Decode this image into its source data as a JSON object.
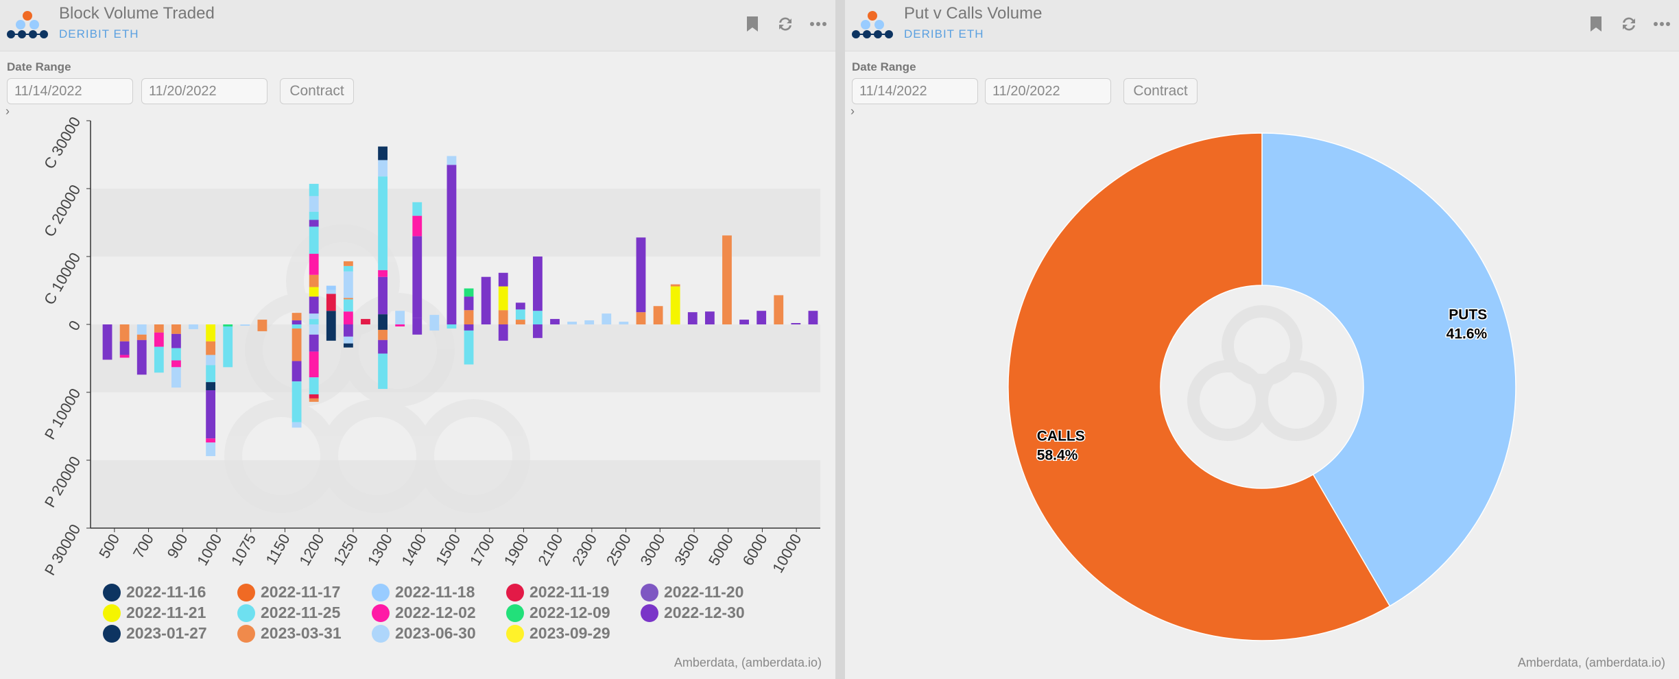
{
  "left": {
    "title": "Block Volume Traded",
    "subtitle": "DERIBIT ETH",
    "date_range_label": "Date Range",
    "start_date": "11/14/2022",
    "end_date": "11/20/2022",
    "contract_label": "Contract",
    "expander": "›",
    "credit": "Amberdata, (amberdata.io)"
  },
  "right": {
    "title": "Put v Calls Volume",
    "subtitle": "DERIBIT ETH",
    "date_range_label": "Date Range",
    "start_date": "11/14/2022",
    "end_date": "11/20/2022",
    "contract_label": "Contract",
    "expander": "›",
    "credit": "Amberdata, (amberdata.io)"
  },
  "chart_data": [
    {
      "type": "bar",
      "stacked": true,
      "categories": [
        "500",
        "700",
        "900",
        "1000",
        "1075",
        "1150",
        "1200",
        "1250",
        "1300",
        "1400",
        "1500",
        "1700",
        "1900",
        "2100",
        "2300",
        "2500",
        "3000",
        "3500",
        "5000",
        "6000",
        "10000"
      ],
      "ylim": [
        -30000,
        30000
      ],
      "yticks": [
        {
          "value": 30000,
          "label": "C 30000"
        },
        {
          "value": 20000,
          "label": "C 20000"
        },
        {
          "value": 10000,
          "label": "C 10000"
        },
        {
          "value": 0,
          "label": "0"
        },
        {
          "value": -10000,
          "label": "P 10000"
        },
        {
          "value": -20000,
          "label": "P 20000"
        },
        {
          "value": -30000,
          "label": "P 30000"
        }
      ],
      "legend": [
        {
          "name": "2022-11-16",
          "color": "#0d3461"
        },
        {
          "name": "2022-11-17",
          "color": "#f06a24"
        },
        {
          "name": "2022-11-18",
          "color": "#99ccff"
        },
        {
          "name": "2022-11-19",
          "color": "#e31a47"
        },
        {
          "name": "2022-11-20",
          "color": "#7e57c2"
        },
        {
          "name": "2022-11-21",
          "color": "#f5f500"
        },
        {
          "name": "2022-11-25",
          "color": "#6ee0f0"
        },
        {
          "name": "2022-12-02",
          "color": "#ff1aa6"
        },
        {
          "name": "2022-12-09",
          "color": "#22e07a"
        },
        {
          "name": "2022-12-30",
          "color": "#7a35c8"
        },
        {
          "name": "2023-01-27",
          "color": "#0d3461"
        },
        {
          "name": "2023-03-31",
          "color": "#f08a4b"
        },
        {
          "name": "2023-06-30",
          "color": "#aed6fb"
        },
        {
          "name": "2023-09-29",
          "color": "#fff22a"
        }
      ],
      "bars": [
        {
          "c": [],
          "p": [
            [
              "2022-12-30",
              5200
            ]
          ]
        },
        {
          "c": [],
          "p": [
            [
              "2023-03-31",
              2500
            ],
            [
              "2022-12-30",
              2000
            ],
            [
              "2022-12-02",
              400
            ]
          ]
        },
        {
          "c": [],
          "p": [
            [
              "2023-06-30",
              1500
            ],
            [
              "2023-03-31",
              800
            ],
            [
              "2022-12-30",
              5100
            ]
          ]
        },
        {
          "c": [],
          "p": [
            [
              "2023-03-31",
              1200
            ],
            [
              "2022-12-02",
              2100
            ],
            [
              "2022-11-25",
              3800
            ]
          ]
        },
        {
          "c": [],
          "p": [
            [
              "2023-03-31",
              1400
            ],
            [
              "2022-12-30",
              2100
            ],
            [
              "2022-11-25",
              1800
            ],
            [
              "2022-12-02",
              1000
            ],
            [
              "2023-06-30",
              3000
            ]
          ]
        },
        {
          "c": [],
          "p": [
            [
              "2023-06-30",
              700
            ]
          ]
        },
        {
          "c": [],
          "p": [
            [
              "2022-11-21",
              2500
            ],
            [
              "2023-03-31",
              2000
            ],
            [
              "2023-06-30",
              1500
            ],
            [
              "2022-11-25",
              2500
            ],
            [
              "2022-11-16",
              1200
            ],
            [
              "2022-12-30",
              7100
            ],
            [
              "2022-12-02",
              600
            ],
            [
              "2023-06-30",
              2000
            ]
          ]
        },
        {
          "c": [],
          "p": [
            [
              "2022-12-09",
              300
            ],
            [
              "2022-11-25",
              6000
            ]
          ]
        },
        {
          "c": [],
          "p": [
            [
              "2023-06-30",
              200
            ]
          ]
        },
        {
          "c": [
            [
              "2023-03-31",
              700
            ]
          ],
          "p": [
            [
              "2023-03-31",
              1000
            ]
          ]
        },
        {
          "c": [],
          "p": []
        },
        {
          "c": [
            [
              "2022-12-30",
              600
            ],
            [
              "2023-03-31",
              1100
            ]
          ],
          "p": [
            [
              "2022-11-25",
              600
            ],
            [
              "2023-03-31",
              4800
            ],
            [
              "2022-12-30",
              3000
            ],
            [
              "2022-11-25",
              6000
            ],
            [
              "2023-06-30",
              800
            ]
          ]
        },
        {
          "c": [
            [
              "2022-11-25",
              800
            ],
            [
              "2023-06-30",
              800
            ],
            [
              "2022-12-30",
              2500
            ],
            [
              "2022-11-21",
              1400
            ],
            [
              "2023-03-31",
              1800
            ],
            [
              "2022-12-02",
              3100
            ],
            [
              "2022-11-25",
              4000
            ],
            [
              "2022-12-30",
              1000
            ],
            [
              "2022-11-25",
              1200
            ],
            [
              "2023-06-30",
              2300
            ],
            [
              "2022-11-25",
              1800
            ]
          ],
          "p": [
            [
              "2023-06-30",
              1500
            ],
            [
              "2022-12-30",
              2500
            ],
            [
              "2022-12-02",
              3800
            ],
            [
              "2022-11-25",
              2500
            ],
            [
              "2022-11-19",
              600
            ],
            [
              "2023-03-31",
              500
            ]
          ]
        },
        {
          "c": [
            [
              "2022-11-16",
              2000
            ],
            [
              "2022-11-19",
              2500
            ],
            [
              "2023-06-30",
              600
            ],
            [
              "2022-11-18",
              600
            ]
          ],
          "p": [
            [
              "2022-11-16",
              2400
            ]
          ]
        },
        {
          "c": [
            [
              "2022-12-02",
              1900
            ],
            [
              "2022-11-25",
              1800
            ],
            [
              "2023-03-31",
              200
            ],
            [
              "2023-06-30",
              3900
            ],
            [
              "2022-11-25",
              800
            ],
            [
              "2023-03-31",
              700
            ]
          ],
          "p": [
            [
              "2022-12-30",
              1800
            ],
            [
              "2023-06-30",
              1000
            ],
            [
              "2022-11-16",
              600
            ]
          ]
        },
        {
          "c": [
            [
              "2022-11-19",
              800
            ]
          ],
          "p": []
        },
        {
          "c": [
            [
              "2022-11-16",
              1500
            ],
            [
              "2022-12-30",
              5500
            ],
            [
              "2022-12-02",
              1000
            ],
            [
              "2022-11-25",
              13800
            ],
            [
              "2023-06-30",
              2400
            ],
            [
              "2022-11-16",
              2000
            ]
          ],
          "p": [
            [
              "2022-11-16",
              800
            ],
            [
              "2023-03-31",
              1500
            ],
            [
              "2022-12-30",
              2000
            ],
            [
              "2022-11-25",
              5200
            ]
          ]
        },
        {
          "c": [
            [
              "2023-06-30",
              2000
            ]
          ],
          "p": [
            [
              "2022-12-02",
              300
            ]
          ]
        },
        {
          "c": [
            [
              "2022-12-30",
              1000
            ],
            [
              "2022-12-30",
              12000
            ],
            [
              "2022-12-02",
              3000
            ],
            [
              "2022-11-25",
              2000
            ]
          ],
          "p": [
            [
              "2022-12-30",
              1500
            ]
          ]
        },
        {
          "c": [
            [
              "2023-06-30",
              1400
            ]
          ],
          "p": [
            [
              "2023-06-30",
              900
            ]
          ]
        },
        {
          "c": [
            [
              "2022-12-30",
              23500
            ],
            [
              "2023-06-30",
              1300
            ]
          ],
          "p": [
            [
              "2022-11-25",
              600
            ]
          ]
        },
        {
          "c": [
            [
              "2023-03-31",
              2100
            ],
            [
              "2022-12-30",
              2000
            ],
            [
              "2022-12-09",
              1200
            ]
          ],
          "p": [
            [
              "2022-12-30",
              900
            ],
            [
              "2022-11-25",
              5000
            ]
          ]
        },
        {
          "c": [
            [
              "2022-12-30",
              7000
            ]
          ],
          "p": []
        },
        {
          "c": [
            [
              "2023-03-31",
              2100
            ],
            [
              "2022-11-21",
              3500
            ],
            [
              "2022-12-30",
              2000
            ]
          ],
          "p": [
            [
              "2022-12-30",
              2400
            ]
          ]
        },
        {
          "c": [
            [
              "2023-03-31",
              700
            ],
            [
              "2022-11-25",
              1500
            ],
            [
              "2022-12-30",
              1000
            ]
          ],
          "p": []
        },
        {
          "c": [
            [
              "2022-11-25",
              2000
            ],
            [
              "2022-12-30",
              8000
            ]
          ],
          "p": [
            [
              "2022-12-30",
              2000
            ]
          ]
        },
        {
          "c": [
            [
              "2022-12-30",
              800
            ]
          ],
          "p": []
        },
        {
          "c": [
            [
              "2023-06-30",
              400
            ]
          ],
          "p": []
        },
        {
          "c": [
            [
              "2023-06-30",
              600
            ]
          ],
          "p": []
        },
        {
          "c": [
            [
              "2023-06-30",
              1600
            ]
          ],
          "p": []
        },
        {
          "c": [
            [
              "2023-06-30",
              400
            ]
          ],
          "p": []
        },
        {
          "c": [
            [
              "2023-03-31",
              1800
            ],
            [
              "2022-12-30",
              11000
            ]
          ],
          "p": []
        },
        {
          "c": [
            [
              "2023-03-31",
              2700
            ]
          ],
          "p": []
        },
        {
          "c": [
            [
              "2022-11-21",
              5600
            ],
            [
              "2023-03-31",
              300
            ]
          ],
          "p": []
        },
        {
          "c": [
            [
              "2022-12-30",
              1800
            ]
          ],
          "p": []
        },
        {
          "c": [
            [
              "2022-12-30",
              1900
            ]
          ],
          "p": []
        },
        {
          "c": [
            [
              "2023-03-31",
              13100
            ]
          ],
          "p": []
        },
        {
          "c": [
            [
              "2022-12-30",
              700
            ]
          ],
          "p": []
        },
        {
          "c": [
            [
              "2022-12-30",
              2000
            ]
          ],
          "p": []
        },
        {
          "c": [
            [
              "2023-03-31",
              4300
            ]
          ],
          "p": []
        },
        {
          "c": [
            [
              "2022-12-30",
              200
            ]
          ],
          "p": []
        },
        {
          "c": [
            [
              "2022-12-30",
              2000
            ]
          ],
          "p": []
        }
      ]
    },
    {
      "type": "pie",
      "donut": true,
      "slices": [
        {
          "label": "PUTS",
          "percent_label": "41.6%",
          "value": 41.6,
          "color": "#99ccff"
        },
        {
          "label": "CALLS",
          "percent_label": "58.4%",
          "value": 58.4,
          "color": "#ef6a24"
        }
      ]
    }
  ]
}
